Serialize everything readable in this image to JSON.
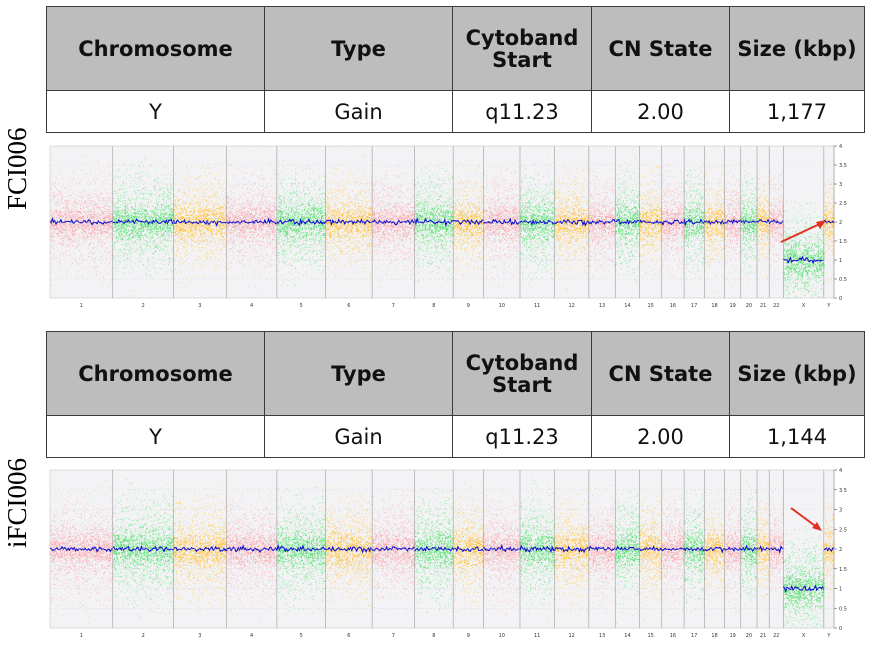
{
  "columns": [
    "Chromosome",
    "Type",
    "Cytoband Start",
    "CN State",
    "Size (kbp)"
  ],
  "panels": [
    {
      "sample": "FCI006",
      "row": {
        "chromosome": "Y",
        "type": "Gain",
        "cytoband_start": "q11.23",
        "cn_state": "2.00",
        "size_kbp": "1,177"
      }
    },
    {
      "sample": "iFCI006",
      "row": {
        "chromosome": "Y",
        "type": "Gain",
        "cytoband_start": "q11.23",
        "cn_state": "2.00",
        "size_kbp": "1,144"
      }
    }
  ],
  "colors": {
    "pink": "#f7a8ae",
    "green": "#58e070",
    "orange": "#ffc240",
    "cn_line": "#0a0acc",
    "arrow": "#e03020",
    "header_bg": "#bdbdbd"
  },
  "chart_data": [
    {
      "type": "scatter",
      "title": "FCI006",
      "categories": [
        "1",
        "2",
        "3",
        "4",
        "5",
        "6",
        "7",
        "8",
        "9",
        "10",
        "11",
        "12",
        "13",
        "14",
        "15",
        "16",
        "17",
        "18",
        "19",
        "20",
        "21",
        "22",
        "X",
        "Y"
      ],
      "y_ticks": [
        "0",
        "0.5",
        "1",
        "1.5",
        "2",
        "2.5",
        "3",
        "3.5",
        "4"
      ],
      "ylim": [
        0,
        4
      ],
      "series": [
        {
          "values": [
            2,
            2,
            2,
            2,
            2,
            2,
            2,
            2,
            2,
            2,
            2,
            2,
            2,
            2,
            2,
            2,
            2,
            2,
            2,
            2,
            2,
            2,
            1,
            2
          ]
        }
      ],
      "annotation": "arrow pointing to chromosome Y gain",
      "grid": true
    },
    {
      "type": "scatter",
      "title": "iFCI006",
      "categories": [
        "1",
        "2",
        "3",
        "4",
        "5",
        "6",
        "7",
        "8",
        "9",
        "10",
        "11",
        "12",
        "13",
        "14",
        "15",
        "16",
        "17",
        "18",
        "19",
        "20",
        "21",
        "22",
        "X",
        "Y"
      ],
      "y_ticks": [
        "0",
        "0.5",
        "1",
        "1.5",
        "2",
        "2.5",
        "3",
        "3.5",
        "4"
      ],
      "ylim": [
        0,
        4
      ],
      "series": [
        {
          "values": [
            2,
            2,
            2,
            2,
            2,
            2,
            2,
            2,
            2,
            2,
            2,
            2,
            2,
            2,
            2,
            2,
            2,
            2,
            2,
            2,
            2,
            2,
            1,
            2
          ]
        }
      ],
      "annotation": "arrow pointing to chromosome Y gain",
      "grid": true
    }
  ]
}
